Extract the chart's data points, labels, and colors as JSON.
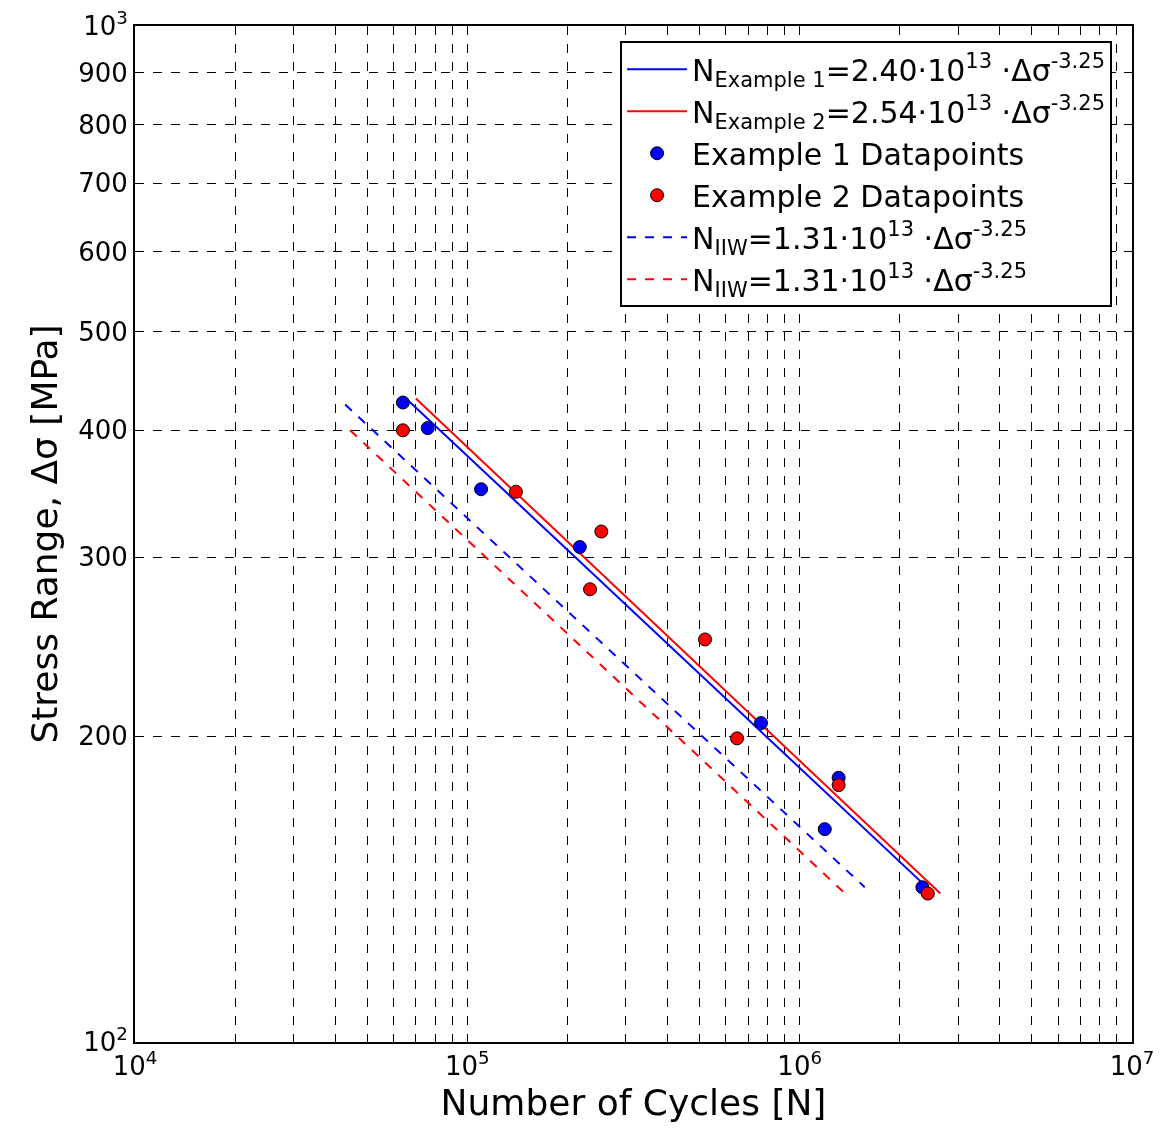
{
  "chart_data": {
    "type": "scatter",
    "xlabel": "Number of Cycles [N]",
    "ylabel": "Stress Range, Δσ [MPa]",
    "log": "xy",
    "grid": true,
    "legend": "top right",
    "marker": "circle",
    "xlim": [
      10000,
      10000000
    ],
    "ylim": [
      100,
      1000
    ],
    "xticks": [
      {
        "value": 10000,
        "label": "10$^{4}$"
      },
      {
        "value": 20000,
        "label": null
      },
      {
        "value": 30000,
        "label": null
      },
      {
        "value": 40000,
        "label": null
      },
      {
        "value": 50000,
        "label": null
      },
      {
        "value": 60000,
        "label": null
      },
      {
        "value": 70000,
        "label": null
      },
      {
        "value": 80000,
        "label": null
      },
      {
        "value": 90000,
        "label": null
      },
      {
        "value": 100000,
        "label": "10$^{5}$"
      },
      {
        "value": 200000,
        "label": null
      },
      {
        "value": 300000,
        "label": null
      },
      {
        "value": 400000,
        "label": null
      },
      {
        "value": 500000,
        "label": null
      },
      {
        "value": 600000,
        "label": null
      },
      {
        "value": 700000,
        "label": null
      },
      {
        "value": 800000,
        "label": null
      },
      {
        "value": 900000,
        "label": null
      },
      {
        "value": 1000000,
        "label": "10$^{6}$"
      },
      {
        "value": 2000000,
        "label": null
      },
      {
        "value": 3000000,
        "label": null
      },
      {
        "value": 4000000,
        "label": null
      },
      {
        "value": 5000000,
        "label": null
      },
      {
        "value": 6000000,
        "label": null
      },
      {
        "value": 7000000,
        "label": null
      },
      {
        "value": 8000000,
        "label": null
      },
      {
        "value": 9000000,
        "label": null
      },
      {
        "value": 10000000,
        "label": "10$^{7}$"
      }
    ],
    "yticks": [
      {
        "value": 100,
        "label": "10$^{2}$"
      },
      200,
      300,
      400,
      500,
      600,
      700,
      800,
      900,
      {
        "value": 1000,
        "label": "10$^{3}$"
      }
    ],
    "series": [
      {
        "name": "N$_{Example 1}$=2.40·10$^{13}$ ·Δσ$^{-3.25}$",
        "type": "line",
        "marker": "none",
        "line_style": "solid",
        "color": "#0000ff",
        "x": [
          65400,
          2470000
        ],
        "values": [
          430,
          141
        ]
      },
      {
        "name": "N$_{Example 2}$=2.54·10$^{13}$ ·Δσ$^{-3.25}$",
        "type": "line",
        "marker": "none",
        "line_style": "solid",
        "color": "#ff0000",
        "x": [
          70000,
          2650000
        ],
        "values": [
          430,
          140
        ]
      },
      {
        "name": "Example 1 Datapoints",
        "color": "#0000ff",
        "x": [
          64000,
          76000,
          110000,
          218000,
          765000,
          1310000,
          1190000,
          2340000
        ],
        "values": [
          426,
          402,
          350,
          307,
          206,
          182,
          162,
          142
        ]
      },
      {
        "name": "Example 2 Datapoints",
        "color": "#ff0000",
        "x": [
          64000,
          140000,
          253000,
          234000,
          519000,
          648000,
          1310000,
          2430000
        ],
        "values": [
          400,
          348,
          318,
          279,
          249,
          199,
          179,
          140
        ]
      },
      {
        "name": "N$_{IIW}$=1.31·10$^{13}$ ·Δσ$^{-3.25}$",
        "type": "line",
        "marker": "none",
        "line_style": "dashed",
        "color": "#0000ff",
        "x": [
          42900,
          1570000
        ],
        "values": [
          424,
          142
        ]
      },
      {
        "name": "N$_{IIW}$=1.31·10$^{13}$ ·Δσ$^{-3.25}$",
        "type": "line",
        "marker": "none",
        "line_style": "dashed",
        "color": "#ff0000",
        "x": [
          44400,
          1370000
        ],
        "values": [
          400,
          140
        ]
      }
    ]
  }
}
